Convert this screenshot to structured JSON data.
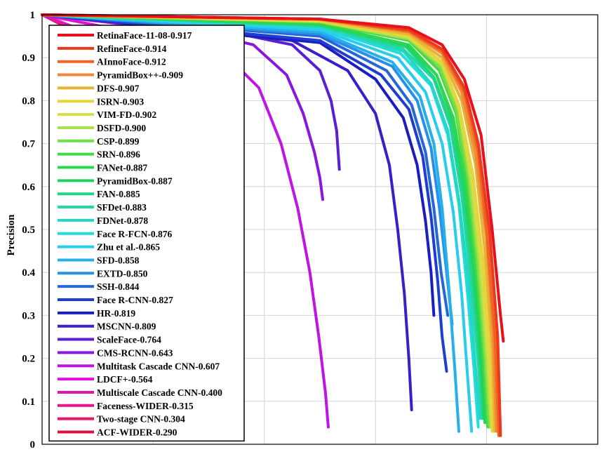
{
  "chart_data": {
    "type": "line",
    "title": "",
    "xlabel": "",
    "ylabel": "Precision",
    "xlim": [
      0,
      1
    ],
    "ylim": [
      0,
      1
    ],
    "y_ticks": [
      "0",
      "0.1",
      "0.2",
      "0.3",
      "0.4",
      "0.5",
      "0.6",
      "0.7",
      "0.8",
      "0.9",
      "1"
    ],
    "grid": true,
    "legend_position": "top-left",
    "series": [
      {
        "name": "RetinaFace-11-08-0.917",
        "color": "#e8101a",
        "points": [
          [
            0,
            1
          ],
          [
            0.5,
            0.99
          ],
          [
            0.66,
            0.97
          ],
          [
            0.72,
            0.93
          ],
          [
            0.76,
            0.85
          ],
          [
            0.79,
            0.72
          ],
          [
            0.81,
            0.5
          ],
          [
            0.825,
            0.3
          ],
          [
            0.83,
            0.24
          ]
        ]
      },
      {
        "name": "RefineFace-0.914",
        "color": "#ec3a1c",
        "points": [
          [
            0,
            1
          ],
          [
            0.5,
            0.99
          ],
          [
            0.66,
            0.965
          ],
          [
            0.72,
            0.92
          ],
          [
            0.76,
            0.83
          ],
          [
            0.785,
            0.7
          ],
          [
            0.805,
            0.5
          ],
          [
            0.82,
            0.25
          ],
          [
            0.825,
            0.02
          ]
        ]
      },
      {
        "name": "AInnoFace-0.912",
        "color": "#ee6420",
        "points": [
          [
            0,
            1
          ],
          [
            0.5,
            0.99
          ],
          [
            0.66,
            0.962
          ],
          [
            0.72,
            0.915
          ],
          [
            0.76,
            0.82
          ],
          [
            0.785,
            0.68
          ],
          [
            0.8,
            0.5
          ],
          [
            0.815,
            0.25
          ],
          [
            0.822,
            0.02
          ]
        ]
      },
      {
        "name": "PyramidBox++-0.909",
        "color": "#ef8a3a",
        "points": [
          [
            0,
            1
          ],
          [
            0.5,
            0.99
          ],
          [
            0.66,
            0.96
          ],
          [
            0.72,
            0.91
          ],
          [
            0.755,
            0.82
          ],
          [
            0.78,
            0.68
          ],
          [
            0.8,
            0.48
          ],
          [
            0.812,
            0.25
          ],
          [
            0.818,
            0.03
          ]
        ]
      },
      {
        "name": "DFS-0.907",
        "color": "#e6b432",
        "points": [
          [
            0,
            1
          ],
          [
            0.5,
            0.988
          ],
          [
            0.66,
            0.955
          ],
          [
            0.72,
            0.9
          ],
          [
            0.755,
            0.8
          ],
          [
            0.78,
            0.65
          ],
          [
            0.797,
            0.45
          ],
          [
            0.81,
            0.22
          ],
          [
            0.815,
            0.03
          ]
        ]
      },
      {
        "name": "ISRN-0.903",
        "color": "#e8d43a",
        "points": [
          [
            0,
            1
          ],
          [
            0.5,
            0.986
          ],
          [
            0.66,
            0.95
          ],
          [
            0.72,
            0.89
          ],
          [
            0.75,
            0.79
          ],
          [
            0.775,
            0.63
          ],
          [
            0.793,
            0.43
          ],
          [
            0.806,
            0.2
          ],
          [
            0.812,
            0.03
          ]
        ]
      },
      {
        "name": "VIM-FD-0.902",
        "color": "#d2df46",
        "points": [
          [
            0,
            1
          ],
          [
            0.5,
            0.985
          ],
          [
            0.66,
            0.948
          ],
          [
            0.72,
            0.885
          ],
          [
            0.75,
            0.785
          ],
          [
            0.773,
            0.62
          ],
          [
            0.79,
            0.42
          ],
          [
            0.803,
            0.2
          ],
          [
            0.81,
            0.03
          ]
        ]
      },
      {
        "name": "DSFD-0.900",
        "color": "#a8e14a",
        "points": [
          [
            0,
            1
          ],
          [
            0.5,
            0.984
          ],
          [
            0.66,
            0.945
          ],
          [
            0.72,
            0.88
          ],
          [
            0.75,
            0.78
          ],
          [
            0.77,
            0.62
          ],
          [
            0.787,
            0.42
          ],
          [
            0.8,
            0.2
          ],
          [
            0.808,
            0.04
          ]
        ]
      },
      {
        "name": "CSP-0.899",
        "color": "#74de46",
        "points": [
          [
            0,
            1
          ],
          [
            0.5,
            0.984
          ],
          [
            0.66,
            0.943
          ],
          [
            0.715,
            0.88
          ],
          [
            0.745,
            0.78
          ],
          [
            0.767,
            0.62
          ],
          [
            0.784,
            0.42
          ],
          [
            0.797,
            0.2
          ],
          [
            0.805,
            0.04
          ]
        ]
      },
      {
        "name": "SRN-0.896",
        "color": "#45d846",
        "points": [
          [
            0,
            1
          ],
          [
            0.5,
            0.982
          ],
          [
            0.66,
            0.94
          ],
          [
            0.715,
            0.87
          ],
          [
            0.745,
            0.77
          ],
          [
            0.765,
            0.61
          ],
          [
            0.782,
            0.41
          ],
          [
            0.795,
            0.2
          ],
          [
            0.802,
            0.04
          ]
        ]
      },
      {
        "name": "FANet-0.887",
        "color": "#2ad84e",
        "points": [
          [
            0,
            1
          ],
          [
            0.5,
            0.978
          ],
          [
            0.66,
            0.93
          ],
          [
            0.71,
            0.86
          ],
          [
            0.74,
            0.76
          ],
          [
            0.762,
            0.6
          ],
          [
            0.78,
            0.4
          ],
          [
            0.793,
            0.2
          ],
          [
            0.8,
            0.05
          ]
        ]
      },
      {
        "name": "PyramidBox-0.887",
        "color": "#21d15f",
        "points": [
          [
            0,
            1
          ],
          [
            0.5,
            0.978
          ],
          [
            0.655,
            0.93
          ],
          [
            0.71,
            0.86
          ],
          [
            0.74,
            0.75
          ],
          [
            0.76,
            0.6
          ],
          [
            0.778,
            0.4
          ],
          [
            0.79,
            0.2
          ],
          [
            0.797,
            0.05
          ]
        ]
      },
      {
        "name": "FAN-0.885",
        "color": "#23d482",
        "points": [
          [
            0,
            1
          ],
          [
            0.5,
            0.976
          ],
          [
            0.655,
            0.925
          ],
          [
            0.705,
            0.855
          ],
          [
            0.735,
            0.75
          ],
          [
            0.757,
            0.59
          ],
          [
            0.775,
            0.39
          ],
          [
            0.788,
            0.19
          ],
          [
            0.795,
            0.06
          ]
        ]
      },
      {
        "name": "SFDet-0.883",
        "color": "#23d8a6",
        "points": [
          [
            0,
            1
          ],
          [
            0.5,
            0.975
          ],
          [
            0.65,
            0.92
          ],
          [
            0.705,
            0.85
          ],
          [
            0.735,
            0.74
          ],
          [
            0.755,
            0.58
          ],
          [
            0.772,
            0.38
          ],
          [
            0.785,
            0.19
          ],
          [
            0.792,
            0.06
          ]
        ]
      },
      {
        "name": "FDNet-0.878",
        "color": "#25d6c4",
        "points": [
          [
            0,
            1
          ],
          [
            0.5,
            0.972
          ],
          [
            0.65,
            0.915
          ],
          [
            0.7,
            0.84
          ],
          [
            0.73,
            0.73
          ],
          [
            0.75,
            0.57
          ],
          [
            0.768,
            0.37
          ],
          [
            0.78,
            0.18
          ],
          [
            0.788,
            0.06
          ]
        ]
      },
      {
        "name": "Face R-FCN-0.876",
        "color": "#22dde0",
        "points": [
          [
            0,
            1
          ],
          [
            0.5,
            0.97
          ],
          [
            0.645,
            0.91
          ],
          [
            0.7,
            0.835
          ],
          [
            0.73,
            0.72
          ],
          [
            0.75,
            0.56
          ],
          [
            0.765,
            0.36
          ],
          [
            0.777,
            0.18
          ],
          [
            0.785,
            0.04
          ]
        ]
      },
      {
        "name": "Zhu et al.-0.865",
        "color": "#28ccec",
        "points": [
          [
            0,
            1
          ],
          [
            0.5,
            0.965
          ],
          [
            0.64,
            0.9
          ],
          [
            0.69,
            0.82
          ],
          [
            0.72,
            0.7
          ],
          [
            0.74,
            0.54
          ],
          [
            0.755,
            0.35
          ],
          [
            0.765,
            0.17
          ],
          [
            0.773,
            0.03
          ]
        ]
      },
      {
        "name": "SFD-0.858",
        "color": "#24b0ea",
        "points": [
          [
            0,
            1
          ],
          [
            0.5,
            0.96
          ],
          [
            0.63,
            0.89
          ],
          [
            0.68,
            0.81
          ],
          [
            0.705,
            0.7
          ],
          [
            0.72,
            0.55
          ],
          [
            0.733,
            0.35
          ],
          [
            0.743,
            0.17
          ],
          [
            0.75,
            0.03
          ]
        ]
      },
      {
        "name": "EXTD-0.850",
        "color": "#2890e8",
        "points": [
          [
            0,
            1
          ],
          [
            0.5,
            0.955
          ],
          [
            0.63,
            0.88
          ],
          [
            0.675,
            0.8
          ],
          [
            0.7,
            0.69
          ],
          [
            0.715,
            0.55
          ],
          [
            0.728,
            0.4
          ],
          [
            0.738,
            0.28
          ]
        ]
      },
      {
        "name": "SSH-0.844",
        "color": "#2468d8",
        "points": [
          [
            0,
            1
          ],
          [
            0.5,
            0.95
          ],
          [
            0.62,
            0.87
          ],
          [
            0.665,
            0.79
          ],
          [
            0.69,
            0.68
          ],
          [
            0.705,
            0.55
          ],
          [
            0.718,
            0.4
          ],
          [
            0.73,
            0.3
          ]
        ]
      },
      {
        "name": "Face R-CNN-0.827",
        "color": "#1e3ed0",
        "points": [
          [
            0,
            1
          ],
          [
            0.5,
            0.94
          ],
          [
            0.61,
            0.86
          ],
          [
            0.66,
            0.78
          ],
          [
            0.685,
            0.67
          ],
          [
            0.7,
            0.53
          ],
          [
            0.712,
            0.38
          ],
          [
            0.72,
            0.25
          ],
          [
            0.728,
            0.17
          ]
        ]
      },
      {
        "name": "HR-0.819",
        "color": "#1a1ec0",
        "points": [
          [
            0,
            1
          ],
          [
            0.5,
            0.935
          ],
          [
            0.6,
            0.85
          ],
          [
            0.65,
            0.76
          ],
          [
            0.675,
            0.65
          ],
          [
            0.69,
            0.52
          ],
          [
            0.7,
            0.4
          ],
          [
            0.705,
            0.3
          ]
        ]
      },
      {
        "name": "MSCNN-0.809",
        "color": "#3a1ec8",
        "points": [
          [
            0,
            1
          ],
          [
            0.45,
            0.94
          ],
          [
            0.55,
            0.87
          ],
          [
            0.6,
            0.77
          ],
          [
            0.625,
            0.65
          ],
          [
            0.64,
            0.5
          ],
          [
            0.652,
            0.35
          ],
          [
            0.66,
            0.2
          ],
          [
            0.665,
            0.08
          ]
        ]
      },
      {
        "name": "ScaleFace-0.764",
        "color": "#5a1ed4",
        "points": [
          [
            0,
            1
          ],
          [
            0.3,
            0.97
          ],
          [
            0.45,
            0.93
          ],
          [
            0.5,
            0.87
          ],
          [
            0.52,
            0.8
          ],
          [
            0.53,
            0.73
          ],
          [
            0.535,
            0.64
          ]
        ]
      },
      {
        "name": "CMS-RCNN-0.643",
        "color": "#8a18dc",
        "points": [
          [
            0,
            1
          ],
          [
            0.25,
            0.97
          ],
          [
            0.38,
            0.93
          ],
          [
            0.44,
            0.86
          ],
          [
            0.47,
            0.77
          ],
          [
            0.49,
            0.68
          ],
          [
            0.5,
            0.62
          ],
          [
            0.505,
            0.57
          ]
        ]
      },
      {
        "name": "Multitask Cascade CNN-0.607",
        "color": "#c014e4",
        "points": [
          [
            0,
            1
          ],
          [
            0.2,
            0.97
          ],
          [
            0.32,
            0.92
          ],
          [
            0.39,
            0.83
          ],
          [
            0.43,
            0.7
          ],
          [
            0.46,
            0.55
          ],
          [
            0.482,
            0.4
          ],
          [
            0.498,
            0.25
          ],
          [
            0.51,
            0.12
          ],
          [
            0.515,
            0.04
          ]
        ]
      },
      {
        "name": "LDCF+-0.564",
        "color": "#e012d8",
        "points": [
          [
            0,
            1
          ],
          [
            0.12,
            0.97
          ],
          [
            0.2,
            0.93
          ],
          [
            0.25,
            0.86
          ],
          [
            0.28,
            0.78
          ],
          [
            0.3,
            0.7
          ],
          [
            0.315,
            0.62
          ],
          [
            0.323,
            0.56
          ],
          [
            0.325,
            0.55
          ]
        ]
      },
      {
        "name": "Multiscale Cascade CNN-0.400",
        "color": "#e414b0",
        "points": [
          [
            0,
            1
          ],
          [
            0.06,
            0.97
          ],
          [
            0.1,
            0.94
          ]
        ]
      },
      {
        "name": "Faceness-WIDER-0.315",
        "color": "#e8148a",
        "points": [
          [
            0,
            1
          ],
          [
            0.05,
            0.97
          ],
          [
            0.08,
            0.95
          ]
        ]
      },
      {
        "name": "Two-stage CNN-0.304",
        "color": "#e81466",
        "points": [
          [
            0,
            1
          ],
          [
            0.04,
            0.975
          ],
          [
            0.06,
            0.96
          ]
        ]
      },
      {
        "name": "ACF-WIDER-0.290",
        "color": "#e01040",
        "points": [
          [
            0,
            1
          ],
          [
            0.03,
            0.98
          ],
          [
            0.05,
            0.97
          ]
        ]
      }
    ]
  }
}
